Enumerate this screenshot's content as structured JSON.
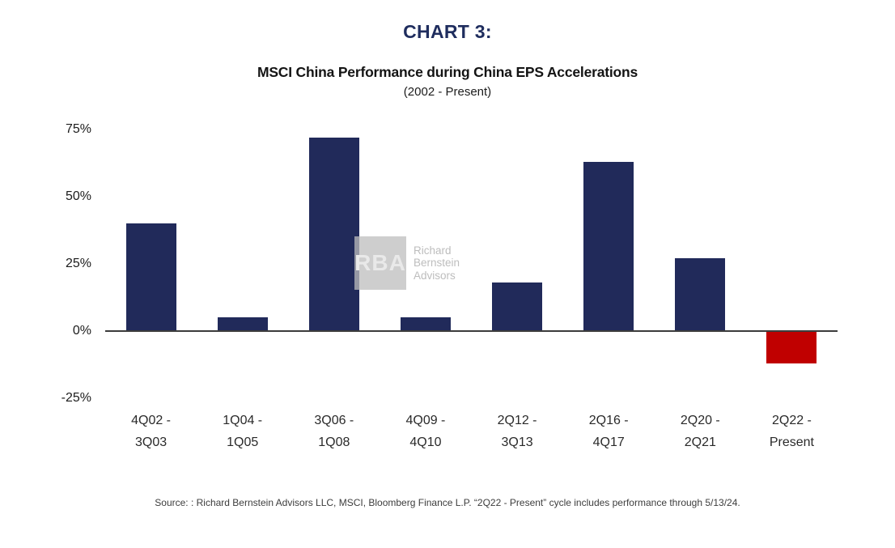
{
  "header": {
    "chart_label": "CHART 3:",
    "title": "MSCI China Performance during China EPS Accelerations",
    "subtitle": "(2002 - Present)"
  },
  "watermark": {
    "logo": "RBA",
    "line1": "Richard",
    "line2": "Bernstein",
    "line3": "Advisors"
  },
  "footer": {
    "source": "Source: :  Richard Bernstein Advisors LLC, MSCI, Bloomberg Finance L.P. “2Q22 - Present” cycle includes performance through 5/13/24."
  },
  "colors": {
    "bar_positive": "#212a5a",
    "bar_negative": "#c00000",
    "title_navy": "#1f2d5e"
  },
  "chart_data": {
    "type": "bar",
    "title": "MSCI China Performance during China EPS Accelerations",
    "subtitle": "(2002 - Present)",
    "categories": [
      "4Q02 - 3Q03",
      "1Q04 - 1Q05",
      "3Q06 - 1Q08",
      "4Q09 - 4Q10",
      "2Q12 - 3Q13",
      "2Q16 - 4Q17",
      "2Q20 - 2Q21",
      "2Q22 - Present"
    ],
    "x_tick_lines": [
      [
        "4Q02 -",
        "3Q03"
      ],
      [
        "1Q04 -",
        "1Q05"
      ],
      [
        "3Q06 -",
        "1Q08"
      ],
      [
        "4Q09 -",
        "4Q10"
      ],
      [
        "2Q12 -",
        "3Q13"
      ],
      [
        "2Q16 -",
        "4Q17"
      ],
      [
        "2Q20 -",
        "2Q21"
      ],
      [
        "2Q22 -",
        "Present"
      ]
    ],
    "values": [
      40,
      5,
      72,
      5,
      18,
      63,
      27,
      -12
    ],
    "unit": "%",
    "xlabel": "",
    "ylabel": "",
    "ylim": [
      -25,
      75
    ],
    "yticks": [
      75,
      50,
      25,
      0,
      -25
    ],
    "grid": false,
    "legend": false,
    "bar_color": "#212a5a",
    "negative_bar_color": "#c00000"
  }
}
